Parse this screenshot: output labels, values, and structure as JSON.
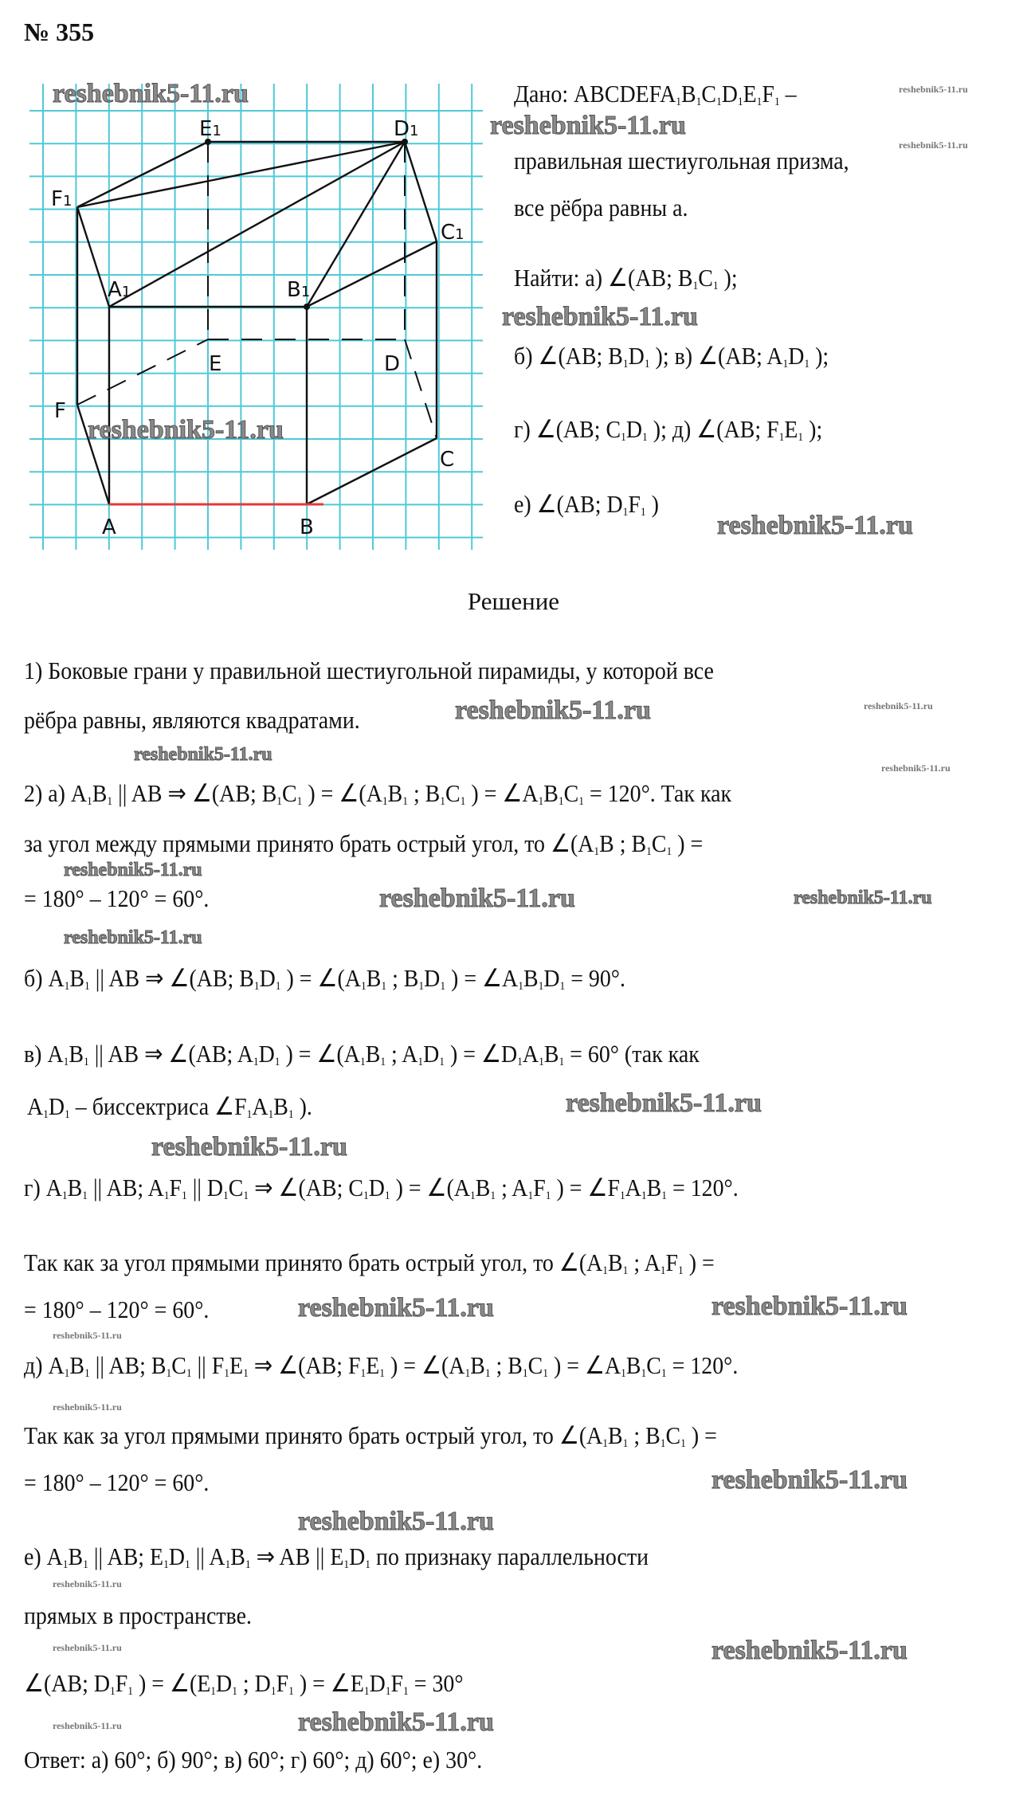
{
  "problem_number": "№ 355",
  "figure": {
    "labels": {
      "E1": "E1",
      "D1": "D1",
      "F1": "F1",
      "C1": "C1",
      "A1": "A1",
      "B1": "B1",
      "E": "E",
      "D": "D",
      "F": "F",
      "C": "C",
      "A": "A",
      "B": "B"
    },
    "grid_color": "#4fc9d9",
    "highlight_color": "#e53935"
  },
  "given": [
    "Дано: ABCDEFA_1B_1C_1D_1E_1F_1 –",
    "правильная шестиугольная призма,",
    "все рёбра равны a.",
    "Найти: а) ∠(AB; B_1C_1 );",
    "б) ∠(AB; B_1D_1 );  в) ∠(AB; A_1D_1 );",
    "г) ∠(AB; C_1D_1 );  д) ∠(AB; F_1E_1 );",
    "е) ∠(AB; D_1F_1 )"
  ],
  "solution_heading": "Решение",
  "solution": [
    "1) Боковые грани у правильной шестиугольной пирамиды, у которой все",
    "рёбра равны, являются квадратами.",
    "2) а) A_1B_1 || AB  ⇒  ∠(AB; B_1C_1 ) = ∠(A_1B_1 ; B_1C_1 ) = ∠A_1B_1C_1 = 120°. Так как",
    "за угол между прямыми принято брать острый угол, то ∠(A_1B ; B_1C_1 ) =",
    "= 180° – 120° = 60°.",
    "б) A_1B_1 || AB  ⇒  ∠(AB; B_1D_1 ) = ∠(A_1B_1 ; B_1D_1 ) = ∠A_1B_1D_1 = 90°.",
    "в) A_1B_1 || AB  ⇒  ∠(AB; A_1D_1 ) = ∠(A_1B_1 ; A_1D_1 ) = ∠D_1A_1B_1 = 60° (так как",
    "A_1D_1 – биссектриса ∠F_1A_1B_1 ).",
    "г) A_1B_1 || AB;  A_1F_1 || D_1C_1  ⇒  ∠(AB; C_1D_1 ) = ∠(A_1B_1 ; A_1F_1 ) = ∠F_1A_1B_1 = 120°.",
    "Так как за угол прямыми принято брать острый угол, то ∠(A_1B_1 ; A_1F_1 ) =",
    "= 180° – 120° = 60°.",
    "д) A_1B_1 || AB;  B_1C_1 || F_1E_1  ⇒  ∠(AB; F_1E_1 ) = ∠(A_1B_1 ; B_1C_1 ) = ∠A_1B_1C_1 = 120°.",
    "Так как за угол прямыми принято брать острый угол, то ∠(A_1B_1 ; B_1C_1 ) =",
    "= 180° – 120° = 60°.",
    "е) A_1B_1 || AB;  E_1D_1 || A_1B_1  ⇒  AB || E_1D_1 по признаку параллельности",
    "прямых в пространстве.",
    "∠(AB; D_1F_1 ) = ∠(E_1D_1 ; D_1F_1 ) = ∠E_1D_1F_1 = 30°",
    "Ответ: а) 60°;  б) 90°;  в) 60°;  г) 60°;  д) 60°;  е) 30°."
  ],
  "watermark": "reshebnik5-11.ru"
}
